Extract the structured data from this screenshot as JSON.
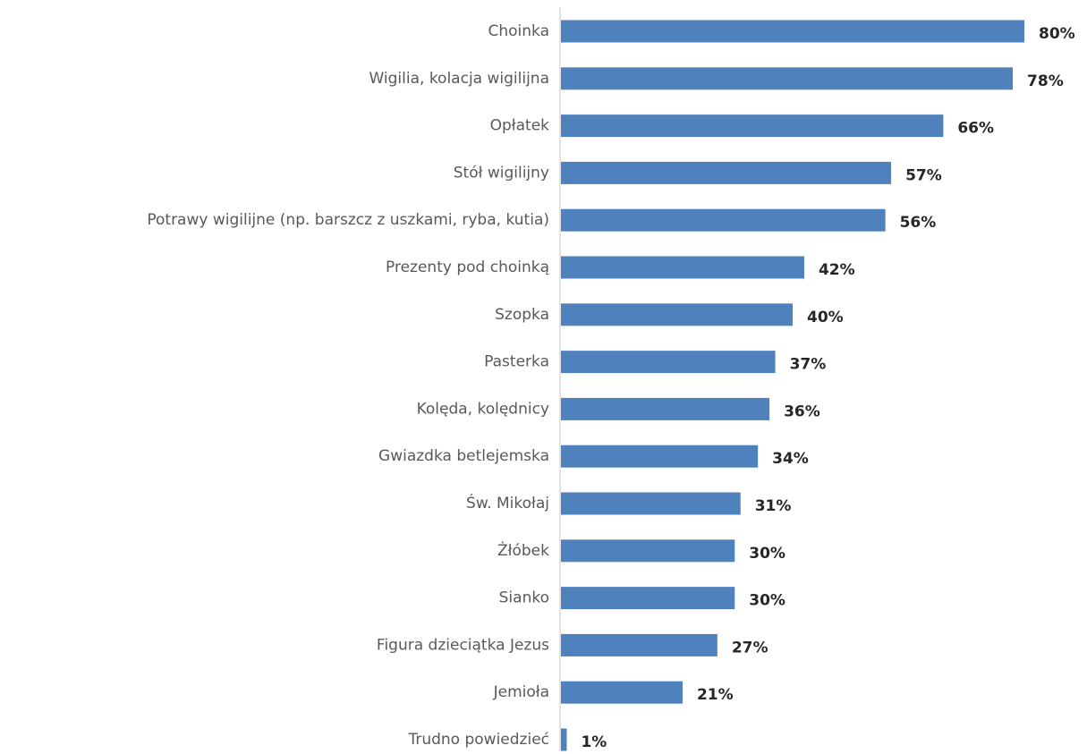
{
  "chart_data": {
    "type": "bar",
    "orientation": "horizontal",
    "categories": [
      "Choinka",
      "Wigilia, kolacja wigilijna",
      "Opłatek",
      "Stół wigilijny",
      "Potrawy wigilijne (np. barszcz z uszkami, ryba, kutia)",
      "Prezenty pod choinką",
      "Szopka",
      "Pasterka",
      "Kolęda, kolędnicy",
      "Gwiazdka betlejemska",
      "Św. Mikołaj",
      "Żłóbek",
      "Sianko",
      "Figura dzieciątka Jezus",
      "Jemioła",
      "Trudno powiedzieć"
    ],
    "values": [
      80,
      78,
      66,
      57,
      56,
      42,
      40,
      37,
      36,
      34,
      31,
      30,
      30,
      27,
      21,
      1
    ],
    "value_labels": [
      "80%",
      "78%",
      "66%",
      "57%",
      "56%",
      "42%",
      "40%",
      "37%",
      "36%",
      "34%",
      "31%",
      "30%",
      "30%",
      "27%",
      "21%",
      "1%"
    ],
    "xlim": [
      0,
      80
    ],
    "bar_color": "#4f81bd",
    "axis_color": "#d9d9d9",
    "grid": false,
    "legend": "none"
  }
}
